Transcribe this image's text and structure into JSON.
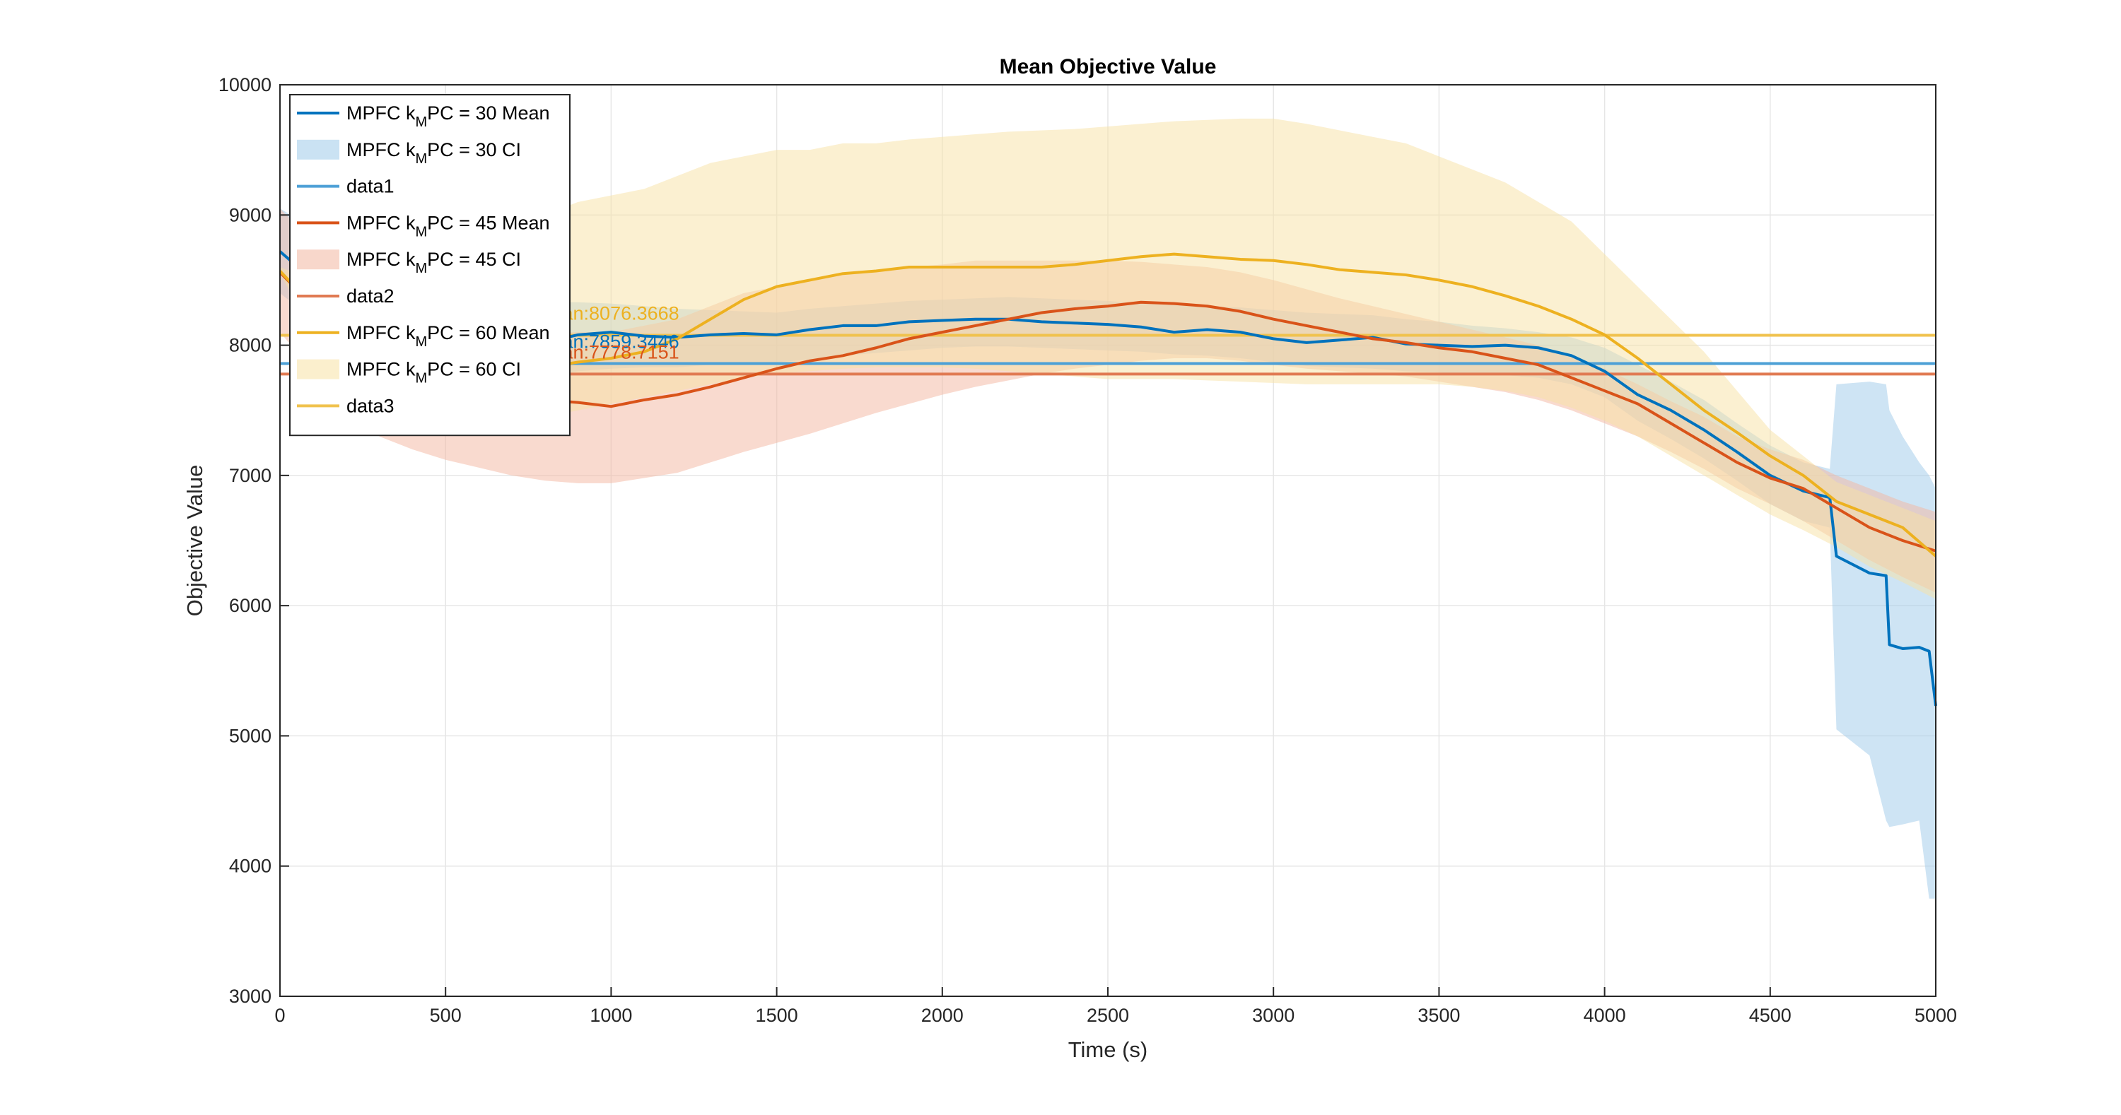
{
  "chart_data": {
    "type": "line",
    "title": "Mean Objective Value",
    "xlabel": "Time (s)",
    "ylabel": "Objective Value",
    "xlim": [
      0,
      5000
    ],
    "ylim": [
      3000,
      10000
    ],
    "xticks": [
      0,
      500,
      1000,
      1500,
      2000,
      2500,
      3000,
      3500,
      4000,
      4500,
      5000
    ],
    "yticks": [
      3000,
      4000,
      5000,
      6000,
      7000,
      8000,
      9000,
      10000
    ],
    "xtick_labels": [
      "0",
      "500",
      "1000",
      "1500",
      "2000",
      "2500",
      "3000",
      "3500",
      "4000",
      "4500",
      "5000"
    ],
    "ytick_labels": [
      "3000",
      "4000",
      "5000",
      "6000",
      "7000",
      "8000",
      "9000",
      "10000"
    ],
    "grid": true,
    "legend_position": "top-left",
    "legend": [
      {
        "kind": "line",
        "series": 0,
        "text_pre": "MPFC k",
        "text_sub": "M",
        "text_post": "PC = 30 Mean"
      },
      {
        "kind": "band",
        "series": 0,
        "text_pre": "MPFC k",
        "text_sub": "M",
        "text_post": "PC = 30 CI"
      },
      {
        "kind": "ref",
        "series": 0,
        "text_pre": "data1",
        "text_sub": "",
        "text_post": ""
      },
      {
        "kind": "line",
        "series": 1,
        "text_pre": "MPFC k",
        "text_sub": "M",
        "text_post": "PC = 45 Mean"
      },
      {
        "kind": "band",
        "series": 1,
        "text_pre": "MPFC k",
        "text_sub": "M",
        "text_post": "PC = 45 CI"
      },
      {
        "kind": "ref",
        "series": 1,
        "text_pre": "data2",
        "text_sub": "",
        "text_post": ""
      },
      {
        "kind": "line",
        "series": 2,
        "text_pre": "MPFC k",
        "text_sub": "M",
        "text_post": "PC = 60 Mean"
      },
      {
        "kind": "band",
        "series": 2,
        "text_pre": "MPFC k",
        "text_sub": "M",
        "text_post": "PC = 60 CI"
      },
      {
        "kind": "ref",
        "series": 2,
        "text_pre": "data3",
        "text_sub": "",
        "text_post": ""
      }
    ],
    "series": [
      {
        "name": "MPFC kMPC = 30",
        "color": "#0072BD",
        "band_color": "#9ECAE9",
        "ref_color": "#4DA0D6",
        "mean_value": 7859.3446,
        "annotation": "Mean:7859.3446",
        "x": [
          0,
          100,
          200,
          300,
          400,
          500,
          600,
          700,
          800,
          900,
          1000,
          1100,
          1200,
          1300,
          1400,
          1500,
          1600,
          1700,
          1800,
          1900,
          2000,
          2100,
          2200,
          2300,
          2400,
          2500,
          2600,
          2700,
          2800,
          2900,
          3000,
          3100,
          3200,
          3300,
          3400,
          3500,
          3600,
          3700,
          3800,
          3900,
          4000,
          4100,
          4200,
          4300,
          4400,
          4500,
          4600,
          4680,
          4700,
          4800,
          4850,
          4860,
          4900,
          4950,
          4980,
          5000
        ],
        "mean": [
          8720,
          8500,
          8300,
          8150,
          8080,
          8050,
          8020,
          8000,
          8020,
          8080,
          8100,
          8070,
          8060,
          8080,
          8090,
          8080,
          8120,
          8150,
          8150,
          8180,
          8190,
          8200,
          8200,
          8180,
          8170,
          8160,
          8140,
          8100,
          8120,
          8100,
          8050,
          8020,
          8040,
          8060,
          8010,
          8000,
          7990,
          8000,
          7980,
          7920,
          7800,
          7620,
          7500,
          7350,
          7180,
          7000,
          6880,
          6830,
          6380,
          6250,
          6230,
          5700,
          5670,
          5680,
          5650,
          5230
        ],
        "upper": [
          9050,
          8900,
          8700,
          8550,
          8450,
          8400,
          8380,
          8350,
          8330,
          8330,
          8320,
          8300,
          8280,
          8270,
          8260,
          8250,
          8280,
          8300,
          8320,
          8340,
          8350,
          8360,
          8370,
          8360,
          8350,
          8340,
          8320,
          8310,
          8300,
          8290,
          8270,
          8250,
          8240,
          8230,
          8200,
          8180,
          8150,
          8130,
          8100,
          8060,
          7980,
          7850,
          7720,
          7580,
          7400,
          7230,
          7100,
          7050,
          7700,
          7720,
          7700,
          7500,
          7300,
          7100,
          7000,
          6900
        ],
        "lower": [
          8400,
          8200,
          8000,
          7880,
          7820,
          7800,
          7780,
          7760,
          7760,
          7800,
          7820,
          7830,
          7830,
          7850,
          7860,
          7870,
          7890,
          7920,
          7940,
          7960,
          7980,
          7990,
          7990,
          7980,
          7970,
          7960,
          7950,
          7930,
          7920,
          7900,
          7870,
          7840,
          7830,
          7820,
          7800,
          7790,
          7780,
          7770,
          7750,
          7700,
          7600,
          7420,
          7280,
          7130,
          6960,
          6780,
          6650,
          6600,
          5050,
          4850,
          4350,
          4300,
          4320,
          4350,
          3750,
          3750
        ]
      },
      {
        "name": "MPFC kMPC = 45",
        "color": "#D95319",
        "band_color": "#F3B6A0",
        "ref_color": "#E07A52",
        "mean_value": 7778.7151,
        "annotation": "Mean:7778.7151",
        "x": [
          0,
          100,
          200,
          300,
          400,
          500,
          600,
          700,
          800,
          900,
          1000,
          1100,
          1200,
          1300,
          1400,
          1500,
          1600,
          1700,
          1800,
          1900,
          2000,
          2100,
          2200,
          2300,
          2400,
          2500,
          2600,
          2700,
          2800,
          2900,
          3000,
          3100,
          3200,
          3300,
          3400,
          3500,
          3600,
          3700,
          3800,
          3900,
          4000,
          4100,
          4200,
          4300,
          4400,
          4500,
          4600,
          4700,
          4800,
          4900,
          5000
        ],
        "mean": [
          8560,
          8300,
          8000,
          7800,
          7700,
          7650,
          7600,
          7580,
          7580,
          7560,
          7530,
          7580,
          7620,
          7680,
          7750,
          7820,
          7880,
          7920,
          7980,
          8050,
          8100,
          8150,
          8200,
          8250,
          8280,
          8300,
          8330,
          8320,
          8300,
          8260,
          8200,
          8150,
          8100,
          8050,
          8020,
          7980,
          7950,
          7900,
          7850,
          7750,
          7650,
          7550,
          7400,
          7250,
          7100,
          6980,
          6900,
          6750,
          6600,
          6500,
          6420
        ],
        "upper": [
          9050,
          8800,
          8500,
          8300,
          8200,
          8150,
          8120,
          8100,
          8100,
          8100,
          8100,
          8150,
          8200,
          8300,
          8400,
          8450,
          8500,
          8550,
          8580,
          8600,
          8620,
          8650,
          8650,
          8650,
          8650,
          8650,
          8640,
          8620,
          8600,
          8560,
          8500,
          8430,
          8360,
          8300,
          8240,
          8180,
          8120,
          8060,
          8000,
          7920,
          7820,
          7700,
          7570,
          7450,
          7300,
          7200,
          7120,
          7000,
          6900,
          6800,
          6720
        ],
        "lower": [
          8100,
          7800,
          7500,
          7300,
          7200,
          7120,
          7060,
          7000,
          6960,
          6940,
          6940,
          6980,
          7020,
          7100,
          7180,
          7250,
          7320,
          7400,
          7480,
          7550,
          7620,
          7680,
          7730,
          7780,
          7820,
          7850,
          7880,
          7900,
          7900,
          7880,
          7850,
          7820,
          7800,
          7780,
          7760,
          7720,
          7680,
          7640,
          7580,
          7500,
          7400,
          7300,
          7180,
          7050,
          6900,
          6780,
          6650,
          6500,
          6350,
          6220,
          6100
        ]
      },
      {
        "name": "MPFC kMPC = 60",
        "color": "#EDB120",
        "band_color": "#F8E2A4",
        "ref_color": "#F0C24E",
        "mean_value": 8076.3668,
        "annotation": "Mean:8076.3668",
        "x": [
          0,
          100,
          200,
          300,
          400,
          500,
          600,
          700,
          800,
          900,
          1000,
          1100,
          1200,
          1300,
          1400,
          1500,
          1600,
          1700,
          1800,
          1900,
          2000,
          2100,
          2200,
          2300,
          2400,
          2500,
          2600,
          2700,
          2800,
          2900,
          3000,
          3100,
          3200,
          3300,
          3400,
          3500,
          3600,
          3700,
          3800,
          3900,
          4000,
          4100,
          4200,
          4300,
          4400,
          4500,
          4600,
          4700,
          4800,
          4900,
          5000
        ],
        "mean": [
          8570,
          8300,
          8050,
          7950,
          7900,
          7880,
          7850,
          7830,
          7830,
          7870,
          7900,
          7950,
          8050,
          8200,
          8350,
          8450,
          8500,
          8550,
          8570,
          8600,
          8600,
          8600,
          8600,
          8600,
          8620,
          8650,
          8680,
          8700,
          8680,
          8660,
          8650,
          8620,
          8580,
          8560,
          8540,
          8500,
          8450,
          8380,
          8300,
          8200,
          8080,
          7900,
          7700,
          7500,
          7330,
          7150,
          7000,
          6800,
          6700,
          6600,
          6380
        ],
        "upper": [
          8600,
          8500,
          8550,
          8650,
          8700,
          8800,
          8850,
          8900,
          9000,
          9100,
          9150,
          9200,
          9300,
          9400,
          9450,
          9500,
          9500,
          9550,
          9550,
          9580,
          9600,
          9620,
          9640,
          9650,
          9660,
          9680,
          9700,
          9720,
          9730,
          9740,
          9740,
          9700,
          9650,
          9600,
          9550,
          9450,
          9350,
          9250,
          9100,
          8950,
          8700,
          8450,
          8200,
          7950,
          7650,
          7350,
          7150,
          6950,
          6850,
          6750,
          6650
        ],
        "lower": [
          8550,
          8100,
          7700,
          7500,
          7400,
          7350,
          7350,
          7400,
          7450,
          7500,
          7550,
          7600,
          7650,
          7700,
          7750,
          7780,
          7800,
          7820,
          7830,
          7830,
          7830,
          7820,
          7800,
          7780,
          7760,
          7740,
          7740,
          7740,
          7730,
          7720,
          7710,
          7700,
          7700,
          7700,
          7700,
          7700,
          7680,
          7650,
          7600,
          7520,
          7420,
          7300,
          7150,
          7000,
          6850,
          6700,
          6580,
          6450,
          6300,
          6180,
          6050
        ]
      }
    ]
  }
}
